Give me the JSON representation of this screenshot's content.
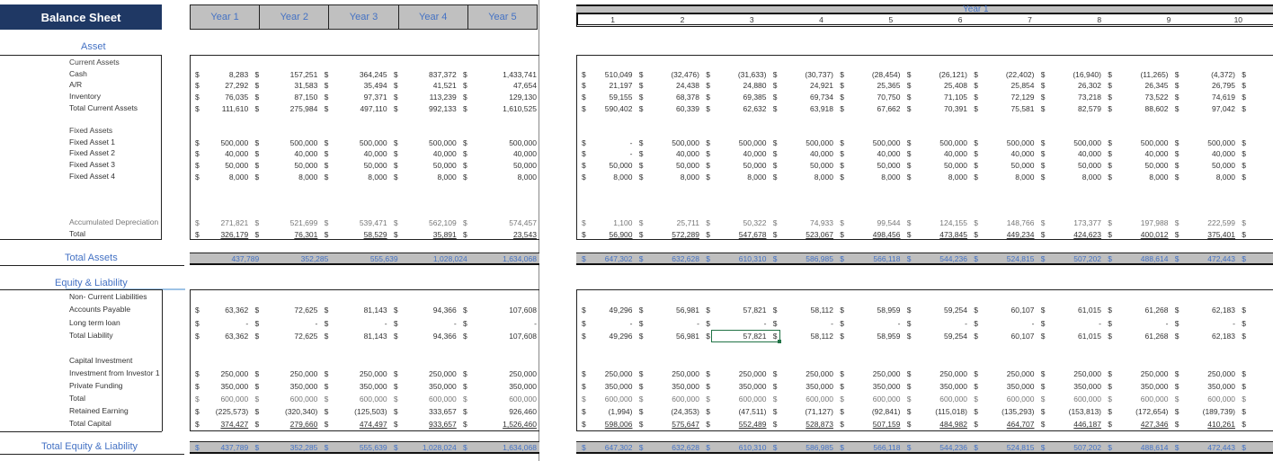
{
  "title": "Balance Sheet",
  "year_headers": [
    "Year 1",
    "Year 2",
    "Year 3",
    "Year 4",
    "Year 5"
  ],
  "monthly_header": {
    "group_label": "Year 1",
    "periods": [
      "1",
      "2",
      "3",
      "4",
      "5",
      "6",
      "7",
      "8",
      "9",
      "10"
    ]
  },
  "sections": {
    "asset": "Asset",
    "total_assets": "Total Assets",
    "equity_liability": "Equity & Liability",
    "total_equity_liability": "Total Equity & Liability"
  },
  "labels": {
    "current_assets": "Current Assets",
    "cash": "Cash",
    "ar": "A/R",
    "inventory": "Inventory",
    "total_current_assets": "Total Current Assets",
    "fixed_assets": "Fixed Assets",
    "fa1": "Fixed Asset 1",
    "fa2": "Fixed Asset 2",
    "fa3": "Fixed Asset 3",
    "fa4": "Fixed Asset 4",
    "acc_dep": "Accumulated Depreciation",
    "total": "Total",
    "non_current_liab": "Non- Current Liabilities",
    "ap": " Accounts Payable",
    "ltl": "Long term loan",
    "total_liab": "Total Liability",
    "capital_investment": "Capital Investment",
    "inv1": "Investment from Investor 1",
    "private": "Private Funding",
    "cap_total": "Total",
    "retained": "Retained Earning",
    "total_capital": "Total Capital"
  },
  "currency_symbol": "$",
  "yearly": {
    "cash": [
      "8,283",
      "157,251",
      "364,245",
      "837,372",
      "1,433,741"
    ],
    "ar": [
      "27,292",
      "31,583",
      "35,494",
      "41,521",
      "47,654"
    ],
    "inventory": [
      "76,035",
      "87,150",
      "97,371",
      "113,239",
      "129,130"
    ],
    "total_current_assets": [
      "111,610",
      "275,984",
      "497,110",
      "992,133",
      "1,610,525"
    ],
    "fa1": [
      "500,000",
      "500,000",
      "500,000",
      "500,000",
      "500,000"
    ],
    "fa2": [
      "40,000",
      "40,000",
      "40,000",
      "40,000",
      "40,000"
    ],
    "fa3": [
      "50,000",
      "50,000",
      "50,000",
      "50,000",
      "50,000"
    ],
    "fa4": [
      "8,000",
      "8,000",
      "8,000",
      "8,000",
      "8,000"
    ],
    "acc_dep": [
      "271,821",
      "521,699",
      "539,471",
      "562,109",
      "574,457"
    ],
    "total": [
      "326,179",
      "76,301",
      "58,529",
      "35,891",
      "23,543"
    ],
    "total_assets": [
      "437,789",
      "352,285",
      "555,639",
      "1,028,024",
      "1,634,068"
    ],
    "ap": [
      "63,362",
      "72,625",
      "81,143",
      "94,366",
      "107,608"
    ],
    "ltl": [
      "-",
      "-",
      "-",
      "-",
      "-"
    ],
    "total_liab": [
      "63,362",
      "72,625",
      "81,143",
      "94,366",
      "107,608"
    ],
    "inv1": [
      "250,000",
      "250,000",
      "250,000",
      "250,000",
      "250,000"
    ],
    "private": [
      "350,000",
      "350,000",
      "350,000",
      "350,000",
      "350,000"
    ],
    "cap_total": [
      "600,000",
      "600,000",
      "600,000",
      "600,000",
      "600,000"
    ],
    "retained": [
      "(225,573)",
      "(320,340)",
      "(125,503)",
      "333,657",
      "926,460"
    ],
    "total_capital": [
      "374,427",
      "279,660",
      "474,497",
      "933,657",
      "1,526,460"
    ],
    "total_equity_liability": [
      "437,789",
      "352,285",
      "555,639",
      "1,028,024",
      "1,634,068"
    ]
  },
  "monthly": {
    "cash": [
      "510,049",
      "(32,476)",
      "(31,633)",
      "(30,737)",
      "(28,454)",
      "(26,121)",
      "(22,402)",
      "(16,940)",
      "(11,265)",
      "(4,372)"
    ],
    "ar": [
      "21,197",
      "24,438",
      "24,880",
      "24,921",
      "25,365",
      "25,408",
      "25,854",
      "26,302",
      "26,345",
      "26,795"
    ],
    "inventory": [
      "59,155",
      "68,378",
      "69,385",
      "69,734",
      "70,750",
      "71,105",
      "72,129",
      "73,218",
      "73,522",
      "74,619"
    ],
    "total_current_assets": [
      "590,402",
      "60,339",
      "62,632",
      "63,918",
      "67,662",
      "70,391",
      "75,581",
      "82,579",
      "88,602",
      "97,042"
    ],
    "fa1": [
      "-",
      "500,000",
      "500,000",
      "500,000",
      "500,000",
      "500,000",
      "500,000",
      "500,000",
      "500,000",
      "500,000"
    ],
    "fa2": [
      "-",
      "40,000",
      "40,000",
      "40,000",
      "40,000",
      "40,000",
      "40,000",
      "40,000",
      "40,000",
      "40,000"
    ],
    "fa3": [
      "50,000",
      "50,000",
      "50,000",
      "50,000",
      "50,000",
      "50,000",
      "50,000",
      "50,000",
      "50,000",
      "50,000"
    ],
    "fa4": [
      "8,000",
      "8,000",
      "8,000",
      "8,000",
      "8,000",
      "8,000",
      "8,000",
      "8,000",
      "8,000",
      "8,000"
    ],
    "acc_dep": [
      "1,100",
      "25,711",
      "50,322",
      "74,933",
      "99,544",
      "124,155",
      "148,766",
      "173,377",
      "197,988",
      "222,599"
    ],
    "total": [
      "56,900",
      "572,289",
      "547,678",
      "523,067",
      "498,456",
      "473,845",
      "449,234",
      "424,623",
      "400,012",
      "375,401"
    ],
    "total_assets": [
      "647,302",
      "632,628",
      "610,310",
      "586,985",
      "566,118",
      "544,236",
      "524,815",
      "507,202",
      "488,614",
      "472,443"
    ],
    "ap": [
      "49,296",
      "56,981",
      "57,821",
      "58,112",
      "58,959",
      "59,254",
      "60,107",
      "61,015",
      "61,268",
      "62,183"
    ],
    "ltl": [
      "-",
      "-",
      "-",
      "-",
      "-",
      "-",
      "-",
      "-",
      "-",
      "-"
    ],
    "total_liab": [
      "49,296",
      "56,981",
      "57,821",
      "58,112",
      "58,959",
      "59,254",
      "60,107",
      "61,015",
      "61,268",
      "62,183"
    ],
    "inv1": [
      "250,000",
      "250,000",
      "250,000",
      "250,000",
      "250,000",
      "250,000",
      "250,000",
      "250,000",
      "250,000",
      "250,000"
    ],
    "private": [
      "350,000",
      "350,000",
      "350,000",
      "350,000",
      "350,000",
      "350,000",
      "350,000",
      "350,000",
      "350,000",
      "350,000"
    ],
    "cap_total": [
      "600,000",
      "600,000",
      "600,000",
      "600,000",
      "600,000",
      "600,000",
      "600,000",
      "600,000",
      "600,000",
      "600,000"
    ],
    "retained": [
      "(1,994)",
      "(24,353)",
      "(47,511)",
      "(71,127)",
      "(92,841)",
      "(115,018)",
      "(135,293)",
      "(153,813)",
      "(172,654)",
      "(189,739)"
    ],
    "total_capital": [
      "598,006",
      "575,647",
      "552,489",
      "528,873",
      "507,159",
      "484,982",
      "464,707",
      "446,187",
      "427,346",
      "410,261"
    ],
    "total_equity_liability": [
      "647,302",
      "632,628",
      "610,310",
      "586,985",
      "566,118",
      "544,236",
      "524,815",
      "507,202",
      "488,614",
      "472,443"
    ]
  },
  "selected_cell": {
    "section": "monthly",
    "row": "total_liab",
    "col": 2
  },
  "colors": {
    "title_bg": "#1f3864",
    "header_bg": "#c0c0c0",
    "accent_blue": "#4472c4",
    "selection_green": "#217346"
  }
}
